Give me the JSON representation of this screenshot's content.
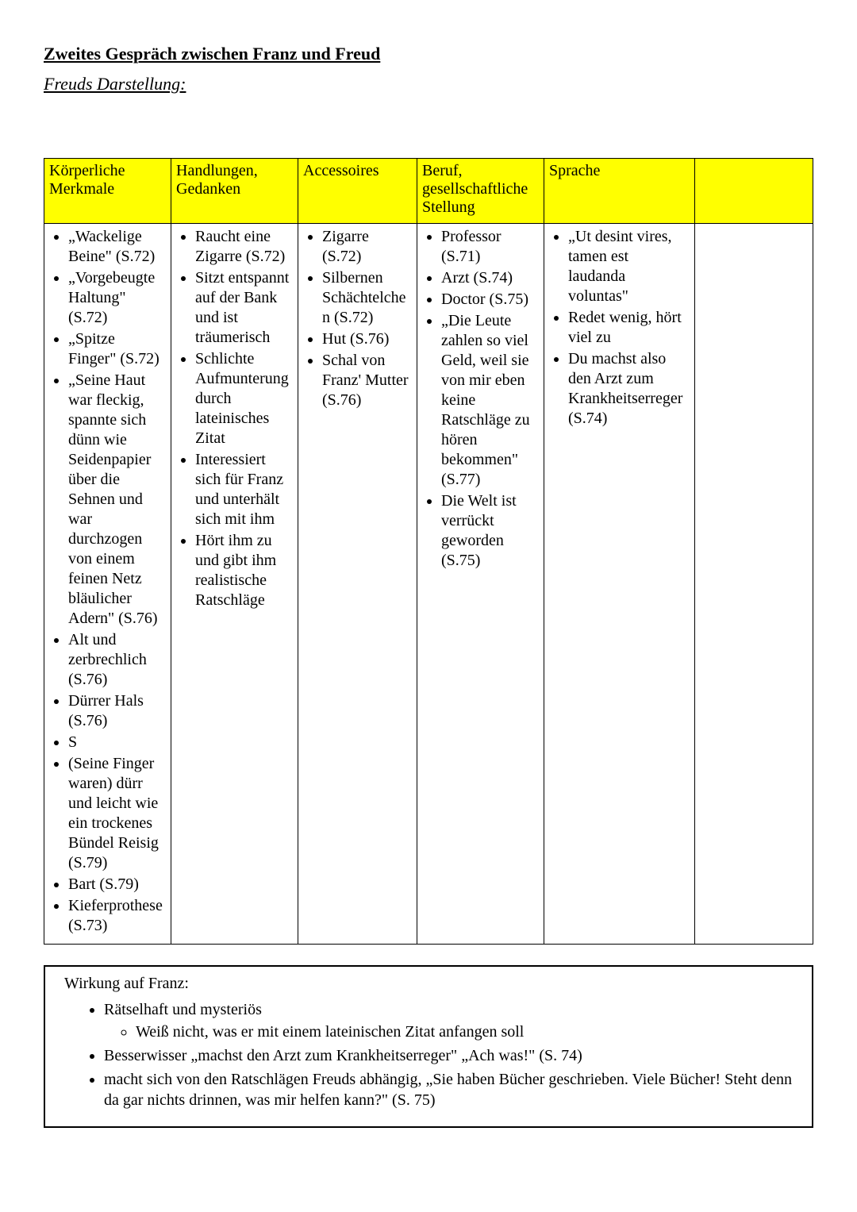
{
  "heading": {
    "title": "Zweites Gespräch zwischen Franz und Freud",
    "subtitle": "Freuds Darstellung:"
  },
  "table": {
    "header_bg": "#ffff00",
    "columns": [
      "Körperliche Merkmale",
      "Handlungen, Gedanken",
      "Accessoires",
      "Beruf, gesellschaftliche Stellung",
      "Sprache",
      ""
    ],
    "cells": {
      "c0": [
        "„Wackelige Beine\" (S.72)",
        "„Vorgebeugte Haltung\" (S.72)",
        "„Spitze Finger\" (S.72)",
        "„Seine Haut war fleckig, spannte sich dünn wie Seidenpapier über die Sehnen und war durchzogen von einem feinen Netz bläulicher Adern\" (S.76)",
        "Alt und zerbrechlich (S.76)",
        "Dürrer Hals (S.76)",
        "S",
        "(Seine Finger waren) dürr und leicht wie ein trockenes Bündel Reisig (S.79)",
        "Bart (S.79)",
        "Kieferprothese (S.73)"
      ],
      "c1": [
        "Raucht eine Zigarre (S.72)",
        "Sitzt entspannt auf der Bank und ist träumerisch",
        "Schlichte Aufmunterung durch lateinisches Zitat",
        "Interessiert sich für Franz und unterhält sich mit ihm",
        "Hört ihm zu und gibt ihm realistische Ratschläge"
      ],
      "c2": [
        "Zigarre (S.72)",
        "Silbernen Schächtelchen (S.72)",
        "Hut (S.76)",
        "Schal von Franz' Mutter (S.76)"
      ],
      "c3": [
        "Professor (S.71)",
        "Arzt (S.74)",
        "Doctor (S.75)",
        "„Die Leute zahlen so viel Geld, weil sie von mir eben keine Ratschläge zu hören bekommen\" (S.77)",
        "Die Welt ist verrückt geworden (S.75)"
      ],
      "c4": [
        "„Ut desint vires, tamen est laudanda voluntas\"",
        "Redet wenig, hört viel zu",
        "Du machst also den Arzt zum Krankheitserreger (S.74)"
      ]
    }
  },
  "effect": {
    "title": "Wirkung auf Franz:",
    "items": [
      {
        "text": "Rätselhaft und mysteriös",
        "children": [
          "Weiß nicht, was er mit einem lateinischen Zitat anfangen soll"
        ]
      },
      {
        "text": "Besserwisser „machst den Arzt zum Krankheitserreger\" „Ach was!\" (S. 74)"
      },
      {
        "text": "macht sich von den Ratschlägen Freuds abhängig, „Sie haben Bücher geschrieben. Viele Bücher! Steht denn da gar nichts drinnen, was mir helfen kann?\" (S. 75)"
      }
    ]
  }
}
